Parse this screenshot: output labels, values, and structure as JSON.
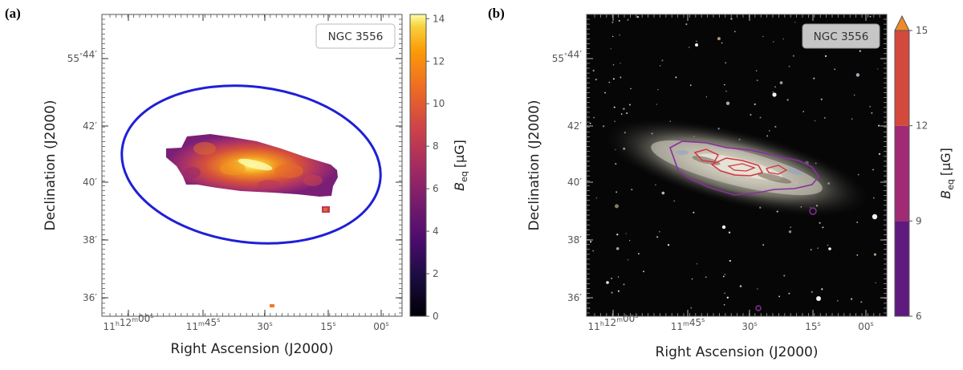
{
  "chart_data": [
    {
      "type": "heatmap",
      "panel_label": "(a)",
      "object_name": "NGC 3556",
      "xlabel": "Right Ascension (J2000)",
      "ylabel": "Declination (J2000)",
      "xticks": [
        {
          "h": "11",
          "m": "12",
          "s": "00",
          "kind": "hms"
        },
        {
          "m": "11",
          "s": "45",
          "kind": "ms"
        },
        {
          "s": "30",
          "kind": "s"
        },
        {
          "s": "15",
          "kind": "s"
        },
        {
          "s": "00",
          "kind": "s"
        }
      ],
      "yticks": [
        {
          "deg": "55",
          "min": "44",
          "kind": "dm"
        },
        {
          "min": "42",
          "kind": "m"
        },
        {
          "min": "40",
          "kind": "m"
        },
        {
          "min": "38",
          "kind": "m"
        },
        {
          "min": "36",
          "kind": "m"
        }
      ],
      "colorbar": {
        "label_var": "B",
        "label_sub": "eq",
        "label_unit": "[μG]",
        "ticks": [
          0,
          2,
          4,
          6,
          8,
          10,
          12,
          14
        ],
        "range": [
          0,
          14.2
        ],
        "colormap": "inferno",
        "extend": "none"
      },
      "ellipse_color": "#1f1fd6"
    },
    {
      "type": "heatmap",
      "panel_label": "(b)",
      "object_name": "NGC 3556",
      "xlabel": "Right Ascension (J2000)",
      "ylabel": "Declination (J2000)",
      "xticks": [
        {
          "h": "11",
          "m": "12",
          "s": "00",
          "kind": "hms"
        },
        {
          "m": "11",
          "s": "45",
          "kind": "ms"
        },
        {
          "s": "30",
          "kind": "s"
        },
        {
          "s": "15",
          "kind": "s"
        },
        {
          "s": "00",
          "kind": "s"
        }
      ],
      "yticks": [
        {
          "deg": "55",
          "min": "44",
          "kind": "dm"
        },
        {
          "min": "42",
          "kind": "m"
        },
        {
          "min": "40",
          "kind": "m"
        },
        {
          "min": "38",
          "kind": "m"
        },
        {
          "min": "36",
          "kind": "m"
        }
      ],
      "colorbar": {
        "label_var": "B",
        "label_sub": "eq",
        "label_unit": "[μG]",
        "ticks": [
          6,
          9,
          12,
          15
        ],
        "range": [
          6,
          15
        ],
        "levels": [
          {
            "from": 6,
            "to": 9,
            "color": "#5e1a7e"
          },
          {
            "from": 9,
            "to": 12,
            "color": "#a02a74"
          },
          {
            "from": 12,
            "to": 15,
            "color": "#d34a3c"
          }
        ],
        "extend_color": "#f08a28",
        "extend": "max"
      },
      "contour_colors": [
        "#8b2f9e",
        "#d4343f"
      ]
    }
  ]
}
